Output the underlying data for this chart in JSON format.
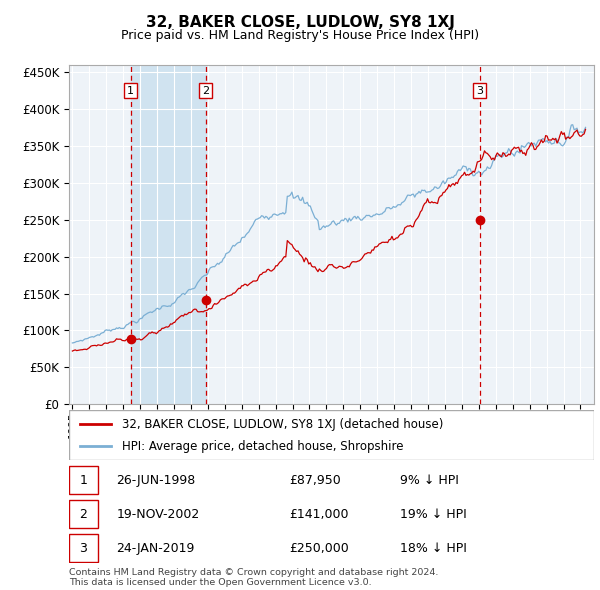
{
  "title": "32, BAKER CLOSE, LUDLOW, SY8 1XJ",
  "subtitle": "Price paid vs. HM Land Registry's House Price Index (HPI)",
  "legend_line1": "32, BAKER CLOSE, LUDLOW, SY8 1XJ (detached house)",
  "legend_line2": "HPI: Average price, detached house, Shropshire",
  "transactions": [
    {
      "num": 1,
      "date": "26-JUN-1998",
      "price": 87950,
      "pct": "9% ↓ HPI"
    },
    {
      "num": 2,
      "date": "19-NOV-2002",
      "price": 141000,
      "pct": "19% ↓ HPI"
    },
    {
      "num": 3,
      "date": "24-JAN-2019",
      "price": 250000,
      "pct": "18% ↓ HPI"
    }
  ],
  "transaction_dates_decimal": [
    1998.49,
    2002.89,
    2019.07
  ],
  "transaction_prices": [
    87950,
    141000,
    250000
  ],
  "background_color": "#ffffff",
  "plot_bg_color": "#eef3f8",
  "grid_color": "#ffffff",
  "hpi_line_color": "#7bafd4",
  "price_line_color": "#cc0000",
  "shade_color": "#d0e3f0",
  "dashed_line_color": "#cc0000",
  "ylim": [
    0,
    460000
  ],
  "yticks": [
    0,
    50000,
    100000,
    150000,
    200000,
    250000,
    300000,
    350000,
    400000,
    450000
  ],
  "footer": "Contains HM Land Registry data © Crown copyright and database right 2024.\nThis data is licensed under the Open Government Licence v3.0.",
  "start_year": 1995.0,
  "end_year": 2025.5
}
